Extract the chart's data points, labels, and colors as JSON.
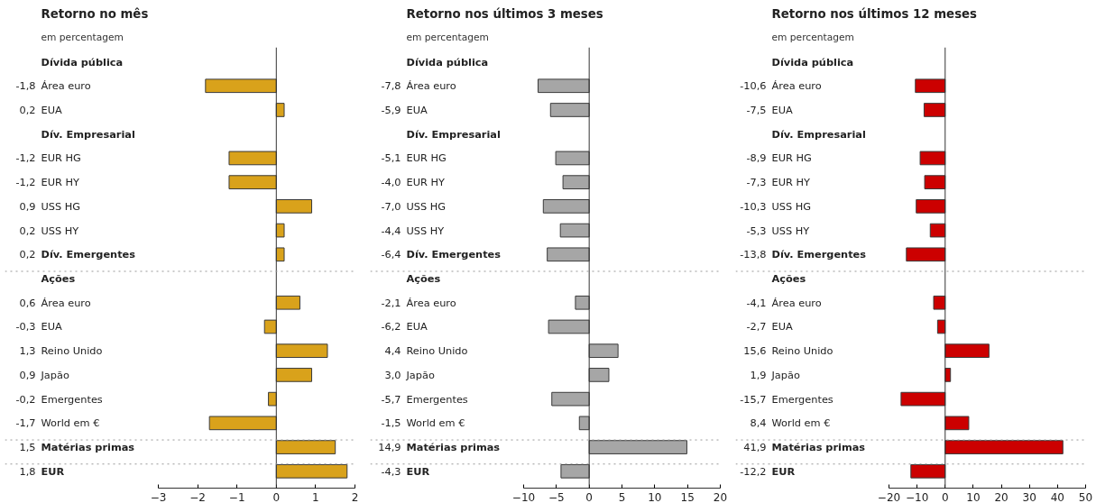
{
  "chart_data": [
    {
      "type": "bar",
      "orientation": "horizontal",
      "title": "Retorno no mês",
      "subtitle": "em percentagem",
      "categories": [
        "Dívida pública",
        "Área euro",
        "EUA",
        "Dív. Empresarial",
        "EUR HG",
        "EUR HY",
        "USS HG",
        "USS HY",
        "Dív. Emergentes",
        "Ações",
        "Área euro",
        "EUA",
        "Reino Unido",
        "Japão",
        "Emergentes",
        "World em €",
        "Matérias primas",
        "EUR"
      ],
      "values": [
        null,
        -1.8,
        0.2,
        null,
        -1.2,
        -1.2,
        0.9,
        0.2,
        0.2,
        null,
        0.6,
        -0.3,
        1.3,
        0.9,
        -0.2,
        -1.7,
        1.5,
        1.8
      ],
      "value_labels": [
        null,
        "-1,8",
        "0,2",
        null,
        "-1,2",
        "-1,2",
        "0,9",
        "0,2",
        "0,2",
        null,
        "0,6",
        "-0,3",
        "1,3",
        "0,9",
        "-0,2",
        "-1,7",
        "1,5",
        "1,8"
      ],
      "color": "#d9a21b",
      "xlim": [
        -3,
        2
      ],
      "xticks": [
        -3,
        -2,
        -1,
        0,
        1,
        2
      ],
      "ref_lines": [
        {
          "axis": "y",
          "value": "Ações",
          "line_style": "dotted",
          "color": "#999999"
        },
        {
          "axis": "y",
          "value": "Matérias primas",
          "line_style": "dotted",
          "color": "#999999"
        },
        {
          "axis": "y",
          "value": "EUR",
          "line_style": "dotted",
          "color": "#999999"
        }
      ]
    },
    {
      "type": "bar",
      "orientation": "horizontal",
      "title": "Retorno nos últimos 3 meses",
      "subtitle": "em percentagem",
      "categories": [
        "Dívida pública",
        "Área euro",
        "EUA",
        "Dív. Empresarial",
        "EUR HG",
        "EUR HY",
        "USS HG",
        "USS HY",
        "Dív. Emergentes",
        "Ações",
        "Área euro",
        "EUA",
        "Reino Unido",
        "Japão",
        "Emergentes",
        "World em €",
        "Matérias primas",
        "EUR"
      ],
      "values": [
        null,
        -7.8,
        -5.9,
        null,
        -5.1,
        -4.0,
        -7.0,
        -4.4,
        -6.4,
        null,
        -2.1,
        -6.2,
        4.4,
        3.0,
        -5.7,
        -1.5,
        14.9,
        -4.3
      ],
      "value_labels": [
        null,
        "-7,8",
        "-5,9",
        null,
        "-5,1",
        "-4,0",
        "-7,0",
        "-4,4",
        "-6,4",
        null,
        "-2,1",
        "-6,2",
        "4,4",
        "3,0",
        "-5,7",
        "-1,5",
        "14,9",
        "-4,3"
      ],
      "color": "#a6a6a6",
      "xlim": [
        -10,
        20
      ],
      "xticks": [
        -10,
        -5,
        0,
        5,
        10,
        15,
        20
      ],
      "ref_lines": [
        {
          "axis": "y",
          "value": "Ações",
          "line_style": "dotted",
          "color": "#999999"
        },
        {
          "axis": "y",
          "value": "Matérias primas",
          "line_style": "dotted",
          "color": "#999999"
        },
        {
          "axis": "y",
          "value": "EUR",
          "line_style": "dotted",
          "color": "#999999"
        }
      ]
    },
    {
      "type": "bar",
      "orientation": "horizontal",
      "title": "Retorno nos últimos 12 meses",
      "subtitle": "em percentagem",
      "categories": [
        "Dívida pública",
        "Área euro",
        "EUA",
        "Dív. Empresarial",
        "EUR HG",
        "EUR HY",
        "USS HG",
        "USS HY",
        "Dív. Emergentes",
        "Ações",
        "Área euro",
        "EUA",
        "Reino Unido",
        "Japão",
        "Emergentes",
        "World em €",
        "Matérias primas",
        "EUR"
      ],
      "values": [
        null,
        -10.6,
        -7.5,
        null,
        -8.9,
        -7.3,
        -10.3,
        -5.3,
        -13.8,
        null,
        -4.1,
        -2.7,
        15.6,
        1.9,
        -15.7,
        8.4,
        41.9,
        -12.2
      ],
      "value_labels": [
        null,
        "-10,6",
        "-7,5",
        null,
        "-8,9",
        "-7,3",
        "-10,3",
        "-5,3",
        "-13,8",
        null,
        "-4,1",
        "-2,7",
        "15,6",
        "1,9",
        "-15,7",
        "8,4",
        "41,9",
        "-12,2"
      ],
      "color": "#cc0000",
      "xlim": [
        -20,
        50
      ],
      "xticks": [
        -20,
        -10,
        0,
        10,
        20,
        30,
        40,
        50
      ],
      "ref_lines": [
        {
          "axis": "y",
          "value": "Ações",
          "line_style": "dotted",
          "color": "#999999"
        },
        {
          "axis": "y",
          "value": "Matérias primas",
          "line_style": "dotted",
          "color": "#999999"
        },
        {
          "axis": "y",
          "value": "EUR",
          "line_style": "dotted",
          "color": "#999999"
        }
      ]
    }
  ]
}
